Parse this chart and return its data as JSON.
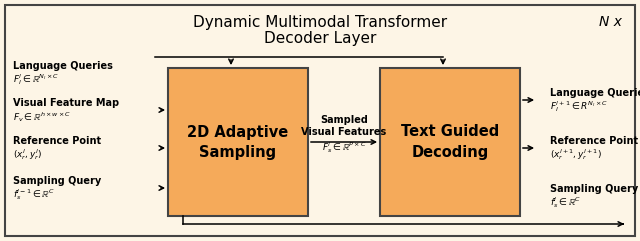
{
  "bg_color": "#fdf5e6",
  "outer_border_color": "#444444",
  "box_color": "#f5aa5a",
  "box_edge_color": "#444444",
  "title_line1": "Dynamic Multimodal Transformer",
  "title_line2": "Decoder Layer",
  "nx_label": "N x",
  "box1_line1": "2D Adaptive",
  "box1_line2": "Sampling",
  "box2_line1": "Text Guided",
  "box2_line2": "Decoding",
  "mid_label_line1": "Sampled",
  "mid_label_line2": "Visual Features",
  "mid_label_math": "$F_s^l \\in \\mathbb{R}^{P\\times C}$",
  "figsize": [
    6.4,
    2.41
  ],
  "dpi": 100
}
